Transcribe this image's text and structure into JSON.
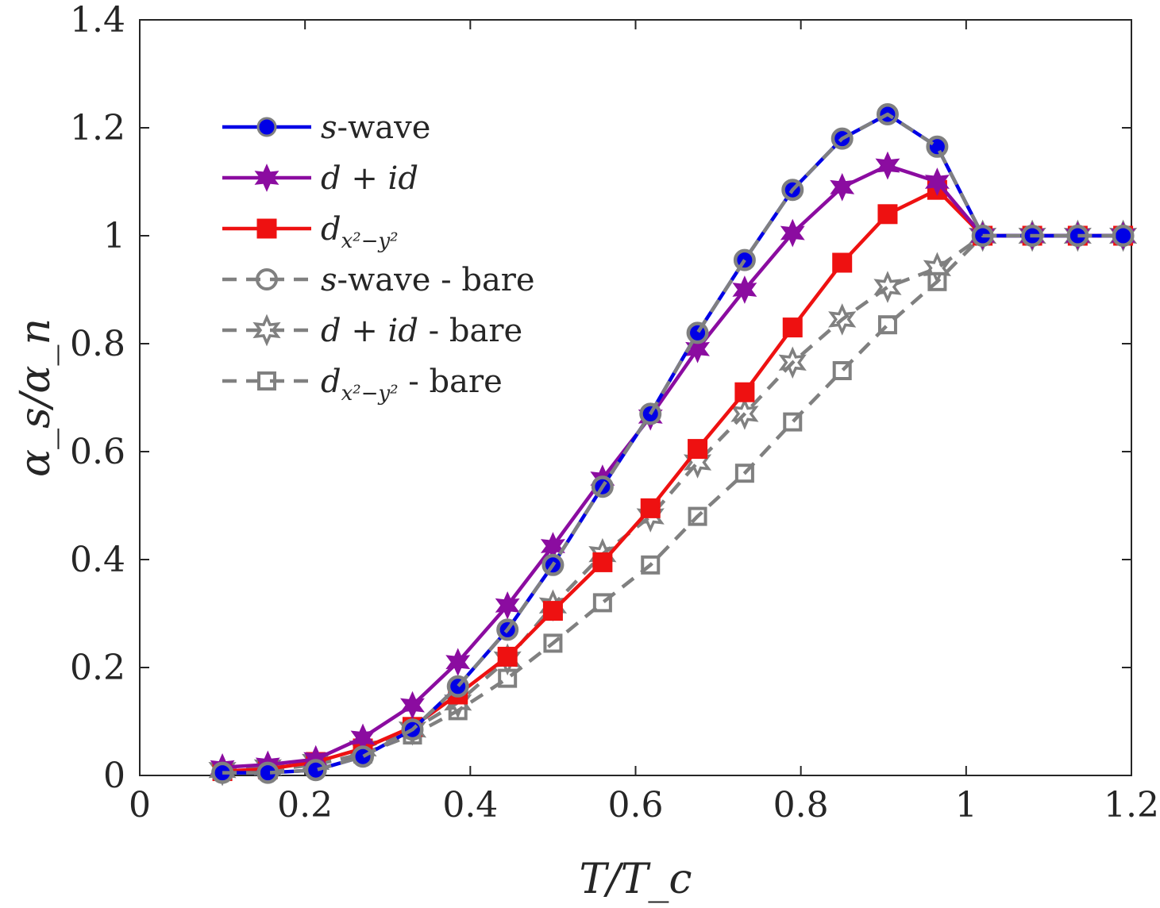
{
  "chart_data": {
    "type": "line",
    "title": "",
    "xlabel": "T/T_c",
    "ylabel": "α_s/α_n",
    "xlim": [
      0,
      1.2
    ],
    "ylim": [
      0,
      1.4
    ],
    "grid": false,
    "legend_position": "top-left",
    "x_ticks": [
      "0",
      "0.2",
      "0.4",
      "0.6",
      "0.8",
      "1",
      "1.2"
    ],
    "y_ticks": [
      "0",
      "0.2",
      "0.4",
      "0.6",
      "0.8",
      "1",
      "1.2",
      "1.4"
    ],
    "x": [
      0.1,
      0.155,
      0.213,
      0.27,
      0.33,
      0.385,
      0.445,
      0.5,
      0.56,
      0.618,
      0.675,
      0.732,
      0.79,
      0.85,
      0.905,
      0.965,
      1.02,
      1.08,
      1.135,
      1.19
    ],
    "series": [
      {
        "name": "s-wave",
        "legend_main": "s",
        "legend_suffix": "-wave",
        "color": "#0000e6",
        "marker": "circle-filled",
        "line": "solid",
        "values": [
          0.005,
          0.005,
          0.01,
          0.035,
          0.085,
          0.165,
          0.27,
          0.39,
          0.535,
          0.67,
          0.82,
          0.955,
          1.085,
          1.18,
          1.225,
          1.165,
          1.0,
          1.0,
          1.0,
          1.0
        ]
      },
      {
        "name": "d + id",
        "legend_main": "d + id",
        "legend_suffix": "",
        "color": "#8b0ca0",
        "marker": "star-filled",
        "line": "solid",
        "values": [
          0.015,
          0.02,
          0.03,
          0.07,
          0.13,
          0.21,
          0.315,
          0.425,
          0.55,
          0.665,
          0.79,
          0.9,
          1.005,
          1.09,
          1.13,
          1.1,
          1.0,
          1.0,
          1.0,
          1.0
        ]
      },
      {
        "name": "d_{x²−y²}",
        "legend_main": "d",
        "legend_sub": "x²−y²",
        "legend_suffix": "",
        "color": "#ee1111",
        "marker": "square-filled",
        "line": "solid",
        "values": [
          0.008,
          0.012,
          0.025,
          0.05,
          0.09,
          0.15,
          0.22,
          0.305,
          0.395,
          0.495,
          0.605,
          0.71,
          0.83,
          0.95,
          1.04,
          1.085,
          1.0,
          1.0,
          1.0,
          1.0
        ]
      },
      {
        "name": "s-wave - bare",
        "legend_main": "s",
        "legend_suffix": "-wave - bare",
        "color": "#808080",
        "marker": "circle-open",
        "line": "dashed",
        "values": [
          0.005,
          0.005,
          0.01,
          0.035,
          0.085,
          0.165,
          0.27,
          0.39,
          0.535,
          0.67,
          0.82,
          0.955,
          1.085,
          1.18,
          1.225,
          1.165,
          1.0,
          1.0,
          1.0,
          1.0
        ]
      },
      {
        "name": "d + id - bare",
        "legend_main": "d + id",
        "legend_suffix": " - bare",
        "color": "#808080",
        "marker": "star-open",
        "line": "dashed",
        "values": [
          0.01,
          0.015,
          0.025,
          0.05,
          0.085,
          0.135,
          0.215,
          0.315,
          0.41,
          0.48,
          0.58,
          0.67,
          0.765,
          0.845,
          0.905,
          0.94,
          1.0,
          1.0,
          1.0,
          1.0
        ]
      },
      {
        "name": "d_{x²−y²} - bare",
        "legend_main": "d",
        "legend_sub": "x²−y²",
        "legend_suffix": " - bare",
        "color": "#808080",
        "marker": "square-open",
        "line": "dashed",
        "values": [
          0.008,
          0.01,
          0.02,
          0.04,
          0.075,
          0.12,
          0.18,
          0.245,
          0.32,
          0.39,
          0.48,
          0.56,
          0.655,
          0.75,
          0.835,
          0.915,
          1.0,
          1.0,
          1.0,
          1.0
        ]
      }
    ]
  }
}
